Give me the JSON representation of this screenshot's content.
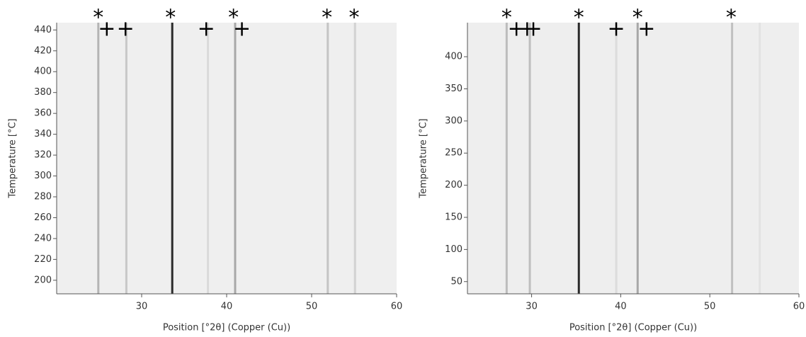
{
  "chart_data": [
    {
      "type": "heatmap",
      "xlabel": "Position [°2θ] (Copper (Cu))",
      "ylabel": "Temperature [°C]",
      "xlim": [
        20,
        60
      ],
      "xticks": [
        30,
        40,
        50,
        60
      ],
      "ylim": [
        187,
        447
      ],
      "yticks": [
        200,
        220,
        240,
        260,
        280,
        300,
        320,
        340,
        360,
        380,
        400,
        420,
        440
      ],
      "background": "#efefef",
      "peaks": [
        {
          "x": 24.9,
          "color": "#b4b4b4"
        },
        {
          "x": 28.2,
          "color": "#c8c8c8"
        },
        {
          "x": 33.6,
          "color": "#2a2a2a"
        },
        {
          "x": 37.8,
          "color": "#dadada"
        },
        {
          "x": 41.0,
          "color": "#a8a8a8"
        },
        {
          "x": 51.9,
          "color": "#c4c4c4"
        },
        {
          "x": 55.1,
          "color": "#d2d2d2"
        }
      ],
      "annotations": [
        {
          "label": "*",
          "x": [
            24.9,
            33.4,
            40.8,
            51.8,
            55.0
          ]
        },
        {
          "label": "+",
          "x": [
            25.9,
            28.1,
            37.6,
            41.8
          ]
        }
      ]
    },
    {
      "type": "heatmap",
      "xlabel": "Position [°2θ] (Copper (Cu))",
      "ylabel": "Temperature [°C]",
      "xlim": [
        22.8,
        60
      ],
      "xticks": [
        30,
        40,
        50,
        60
      ],
      "ylim": [
        31,
        453
      ],
      "yticks": [
        50,
        100,
        150,
        200,
        250,
        300,
        350,
        400
      ],
      "background": "#eeeeee",
      "peaks": [
        {
          "x": 27.2,
          "color": "#bcbcbc"
        },
        {
          "x": 29.8,
          "color": "#bebebe"
        },
        {
          "x": 35.3,
          "color": "#2a2a2a"
        },
        {
          "x": 39.5,
          "color": "#dcdcdc"
        },
        {
          "x": 41.9,
          "color": "#a8a8a8"
        },
        {
          "x": 52.5,
          "color": "#c0c0c0"
        },
        {
          "x": 55.6,
          "color": "#e2e2e2"
        }
      ],
      "annotations": [
        {
          "label": "*",
          "x": [
            27.2,
            35.3,
            41.9,
            52.4
          ]
        },
        {
          "label": "+",
          "x": [
            28.3,
            29.5,
            30.2,
            39.5,
            42.9
          ]
        }
      ]
    }
  ]
}
